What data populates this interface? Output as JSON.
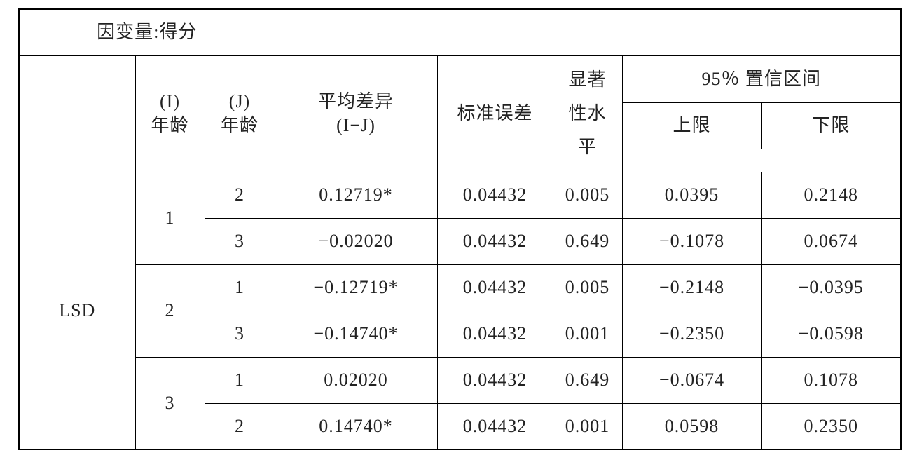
{
  "table": {
    "dependent_variable": "因变量:得分",
    "headers": {
      "i_age": [
        "(I)",
        "年龄"
      ],
      "j_age": [
        "(J)",
        "年龄"
      ],
      "mean_diff": [
        "平均差异",
        "(I−J)"
      ],
      "std_err": "标准误差",
      "sig": [
        "显著",
        "性水",
        "平"
      ],
      "ci": "95％ 置信区间",
      "ci_lower": "上限",
      "ci_upper": "下限"
    },
    "method": "LSD",
    "groups": [
      {
        "i": "1",
        "rows": [
          {
            "j": "2",
            "mean_diff": "0.12719*",
            "std_err": "0.04432",
            "sig": "0.005",
            "lower": "0.0395",
            "upper": "0.2148"
          },
          {
            "j": "3",
            "mean_diff": "−0.02020",
            "std_err": "0.04432",
            "sig": "0.649",
            "lower": "−0.1078",
            "upper": "0.0674"
          }
        ]
      },
      {
        "i": "2",
        "rows": [
          {
            "j": "1",
            "mean_diff": "−0.12719*",
            "std_err": "0.04432",
            "sig": "0.005",
            "lower": "−0.2148",
            "upper": "−0.0395"
          },
          {
            "j": "3",
            "mean_diff": "−0.14740*",
            "std_err": "0.04432",
            "sig": "0.001",
            "lower": "−0.2350",
            "upper": "−0.0598"
          }
        ]
      },
      {
        "i": "3",
        "rows": [
          {
            "j": "1",
            "mean_diff": "0.02020",
            "std_err": "0.04432",
            "sig": "0.649",
            "lower": "−0.0674",
            "upper": "0.1078"
          },
          {
            "j": "2",
            "mean_diff": "0.14740*",
            "std_err": "0.04432",
            "sig": "0.001",
            "lower": "0.0598",
            "upper": "0.2350"
          }
        ]
      }
    ]
  }
}
